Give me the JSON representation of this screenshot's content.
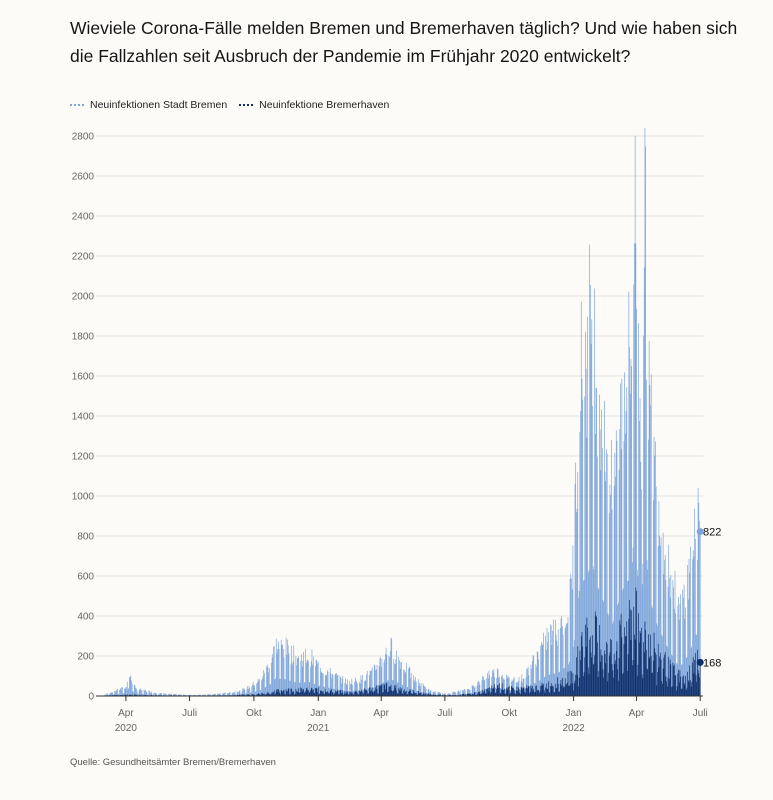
{
  "title": "Wieviele Corona-Fälle melden Bremen und Bremerhaven täglich? Und wie haben sich die Fallzahlen seit Ausbruch der Pandemie im Frühjahr 2020 entwickelt?",
  "source": "Quelle: Gesundheitsämter Bremen/Bremerhaven",
  "colors": {
    "bremen": "#7fa6db",
    "bremerhaven": "#0e2f6b",
    "grid": "#e6e4df",
    "axis": "#333333"
  },
  "chart_data": {
    "type": "bar",
    "ylim": [
      0,
      2800
    ],
    "yticks": [
      0,
      200,
      400,
      600,
      800,
      1000,
      1200,
      1400,
      1600,
      1800,
      2000,
      2200,
      2400,
      2600,
      2800
    ],
    "x_range": [
      "2020-02-24",
      "2022-07-05"
    ],
    "xticks": [
      {
        "date": "2020-04-01",
        "label": "Apr",
        "sublabel": "2020"
      },
      {
        "date": "2020-07-01",
        "label": "Juli",
        "sublabel": ""
      },
      {
        "date": "2020-10-01",
        "label": "Okt",
        "sublabel": ""
      },
      {
        "date": "2021-01-01",
        "label": "Jan",
        "sublabel": "2021"
      },
      {
        "date": "2021-04-01",
        "label": "Apr",
        "sublabel": ""
      },
      {
        "date": "2021-07-01",
        "label": "Juli",
        "sublabel": ""
      },
      {
        "date": "2021-10-01",
        "label": "Okt",
        "sublabel": ""
      },
      {
        "date": "2022-01-01",
        "label": "Jan",
        "sublabel": "2022"
      },
      {
        "date": "2022-04-01",
        "label": "Apr",
        "sublabel": ""
      },
      {
        "date": "2022-07-01",
        "label": "Juli",
        "sublabel": ""
      }
    ],
    "series": [
      {
        "name": "Neuinfektionen Stadt Bremen",
        "color": "#7fa6db",
        "last_value": 822,
        "points": [
          [
            "2020-03-01",
            5
          ],
          [
            "2020-03-15",
            25
          ],
          [
            "2020-03-25",
            35
          ],
          [
            "2020-04-01",
            40
          ],
          [
            "2020-04-05",
            110
          ],
          [
            "2020-04-15",
            35
          ],
          [
            "2020-05-01",
            25
          ],
          [
            "2020-05-15",
            15
          ],
          [
            "2020-06-01",
            10
          ],
          [
            "2020-07-01",
            5
          ],
          [
            "2020-08-01",
            8
          ],
          [
            "2020-09-01",
            18
          ],
          [
            "2020-09-20",
            35
          ],
          [
            "2020-10-10",
            80
          ],
          [
            "2020-10-25",
            170
          ],
          [
            "2020-11-01",
            250
          ],
          [
            "2020-11-15",
            240
          ],
          [
            "2020-12-01",
            190
          ],
          [
            "2020-12-20",
            200
          ],
          [
            "2021-01-01",
            150
          ],
          [
            "2021-01-20",
            110
          ],
          [
            "2021-02-10",
            70
          ],
          [
            "2021-03-01",
            80
          ],
          [
            "2021-03-20",
            120
          ],
          [
            "2021-04-05",
            200
          ],
          [
            "2021-04-15",
            240
          ],
          [
            "2021-05-01",
            160
          ],
          [
            "2021-05-20",
            80
          ],
          [
            "2021-06-10",
            25
          ],
          [
            "2021-07-01",
            10
          ],
          [
            "2021-08-01",
            30
          ],
          [
            "2021-08-20",
            70
          ],
          [
            "2021-09-01",
            110
          ],
          [
            "2021-09-15",
            120
          ],
          [
            "2021-10-01",
            80
          ],
          [
            "2021-10-20",
            90
          ],
          [
            "2021-11-10",
            200
          ],
          [
            "2021-11-25",
            300
          ],
          [
            "2021-12-10",
            330
          ],
          [
            "2021-12-25",
            450
          ],
          [
            "2022-01-01",
            700
          ],
          [
            "2022-01-10",
            1600
          ],
          [
            "2022-01-20",
            1700
          ],
          [
            "2022-01-27",
            1940
          ],
          [
            "2022-02-05",
            1550
          ],
          [
            "2022-02-15",
            1300
          ],
          [
            "2022-02-25",
            1000
          ],
          [
            "2022-03-05",
            1300
          ],
          [
            "2022-03-15",
            1600
          ],
          [
            "2022-03-25",
            1700
          ],
          [
            "2022-03-29",
            2540
          ],
          [
            "2022-04-02",
            1800
          ],
          [
            "2022-04-08",
            1300
          ],
          [
            "2022-04-12",
            2480
          ],
          [
            "2022-04-20",
            1400
          ],
          [
            "2022-05-01",
            1000
          ],
          [
            "2022-05-15",
            700
          ],
          [
            "2022-06-01",
            400
          ],
          [
            "2022-06-15",
            600
          ],
          [
            "2022-06-25",
            880
          ],
          [
            "2022-07-01",
            822
          ]
        ]
      },
      {
        "name": "Neuinfektione Bremerhaven",
        "color": "#0e2f6b",
        "last_value": 168,
        "points": [
          [
            "2020-03-01",
            2
          ],
          [
            "2020-04-01",
            8
          ],
          [
            "2020-05-01",
            5
          ],
          [
            "2020-07-01",
            2
          ],
          [
            "2020-09-01",
            4
          ],
          [
            "2020-10-15",
            15
          ],
          [
            "2020-11-10",
            35
          ],
          [
            "2020-12-15",
            40
          ],
          [
            "2021-01-10",
            35
          ],
          [
            "2021-02-15",
            20
          ],
          [
            "2021-03-15",
            40
          ],
          [
            "2021-04-10",
            60
          ],
          [
            "2021-05-10",
            30
          ],
          [
            "2021-06-15",
            8
          ],
          [
            "2021-07-15",
            4
          ],
          [
            "2021-08-20",
            20
          ],
          [
            "2021-09-15",
            60
          ],
          [
            "2021-10-05",
            40
          ],
          [
            "2021-11-10",
            50
          ],
          [
            "2021-12-10",
            80
          ],
          [
            "2022-01-01",
            120
          ],
          [
            "2022-01-15",
            350
          ],
          [
            "2022-01-28",
            380
          ],
          [
            "2022-02-10",
            300
          ],
          [
            "2022-02-25",
            260
          ],
          [
            "2022-03-15",
            380
          ],
          [
            "2022-03-28",
            530
          ],
          [
            "2022-04-05",
            350
          ],
          [
            "2022-04-15",
            380
          ],
          [
            "2022-05-01",
            250
          ],
          [
            "2022-05-20",
            150
          ],
          [
            "2022-06-10",
            90
          ],
          [
            "2022-06-25",
            220
          ],
          [
            "2022-07-01",
            168
          ]
        ]
      }
    ]
  }
}
